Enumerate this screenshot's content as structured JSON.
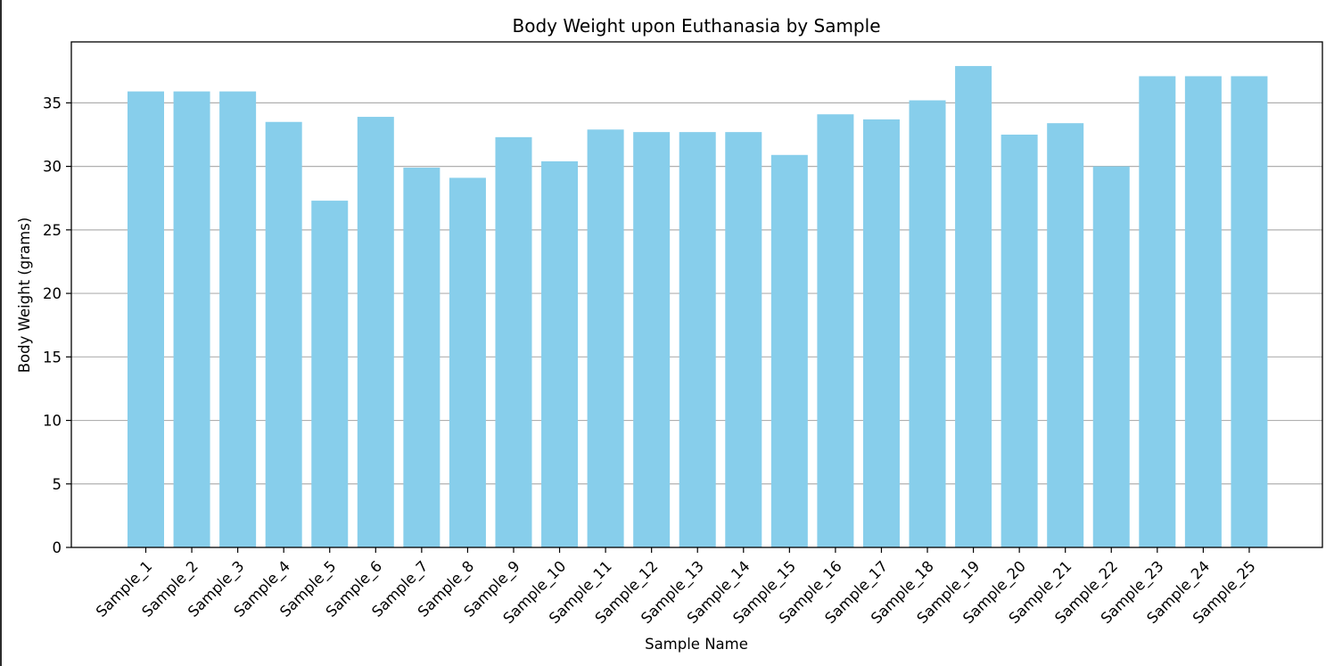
{
  "chart_data": {
    "type": "bar",
    "title": "Body Weight upon Euthanasia by Sample",
    "xlabel": "Sample Name",
    "ylabel": "Body Weight (grams)",
    "categories": [
      "Sample_1",
      "Sample_2",
      "Sample_3",
      "Sample_4",
      "Sample_5",
      "Sample_6",
      "Sample_7",
      "Sample_8",
      "Sample_9",
      "Sample_10",
      "Sample_11",
      "Sample_12",
      "Sample_13",
      "Sample_14",
      "Sample_15",
      "Sample_16",
      "Sample_17",
      "Sample_18",
      "Sample_19",
      "Sample_20",
      "Sample_21",
      "Sample_22",
      "Sample_23",
      "Sample_24",
      "Sample_25"
    ],
    "values": [
      35.9,
      35.9,
      35.9,
      33.5,
      27.3,
      33.9,
      29.9,
      29.1,
      32.3,
      30.4,
      32.9,
      32.7,
      32.7,
      32.7,
      30.9,
      34.1,
      33.7,
      35.2,
      37.9,
      32.5,
      33.4,
      30.0,
      37.1,
      37.1,
      37.1
    ],
    "ylim": [
      0,
      39.8
    ],
    "yticks": [
      0,
      5,
      10,
      15,
      20,
      25,
      30,
      35
    ],
    "grid": "y",
    "bar_color": "#87CEEB",
    "grid_color": "#b0b0b0"
  }
}
